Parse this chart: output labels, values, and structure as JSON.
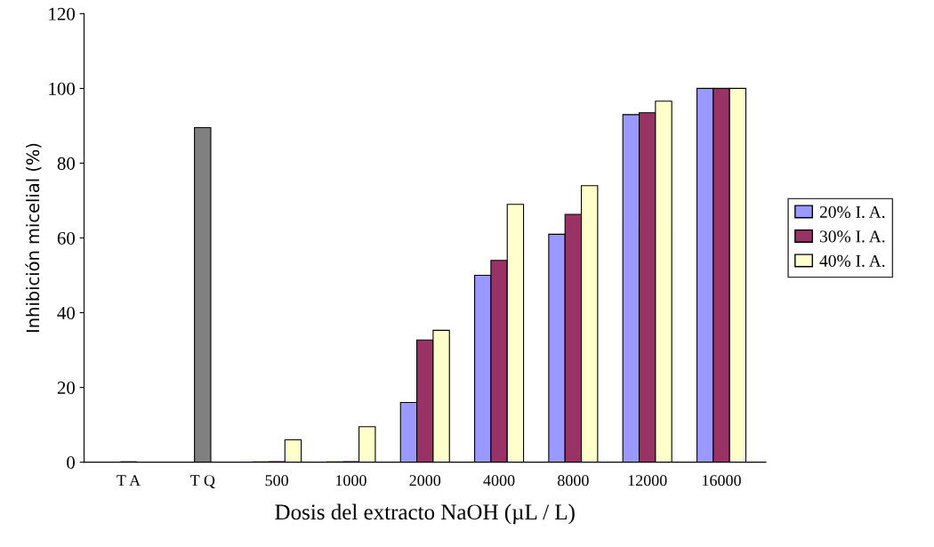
{
  "chart_data": {
    "type": "bar",
    "xlabel": "Dosis del extracto NaOH (µL / L)",
    "ylabel": "Inhibición micelial (%)",
    "categories": [
      "T A",
      "T Q",
      "500",
      "1000",
      "2000",
      "4000",
      "8000",
      "12000",
      "16000"
    ],
    "series": [
      {
        "color": "#808080",
        "values": [
          0,
          89.5,
          null,
          null,
          null,
          null,
          null,
          null,
          null
        ]
      },
      {
        "name": "20% I. A.",
        "color": "#9999ff",
        "values": [
          null,
          null,
          0,
          0,
          16,
          50,
          61,
          93,
          100
        ]
      },
      {
        "name": "30% I. A.",
        "color": "#993366",
        "values": [
          null,
          null,
          0,
          0,
          32.7,
          54,
          66.3,
          93.5,
          100
        ]
      },
      {
        "name": "40% I. A.",
        "color": "#ffffcc",
        "values": [
          null,
          null,
          6,
          9.5,
          35.3,
          69,
          74,
          96.6,
          100
        ]
      }
    ],
    "ylim": [
      0,
      120
    ],
    "yticks": [
      0,
      20,
      40,
      60,
      80,
      100,
      120
    ],
    "grid": false,
    "legend": "right"
  }
}
